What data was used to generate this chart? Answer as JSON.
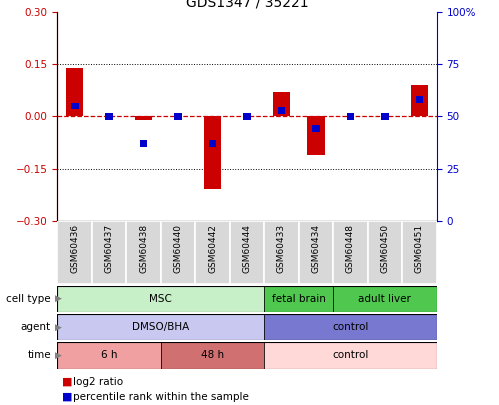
{
  "title": "GDS1347 / 35221",
  "samples": [
    "GSM60436",
    "GSM60437",
    "GSM60438",
    "GSM60440",
    "GSM60442",
    "GSM60444",
    "GSM60433",
    "GSM60434",
    "GSM60448",
    "GSM60450",
    "GSM60451"
  ],
  "log2_ratio": [
    0.14,
    0.0,
    -0.01,
    0.0,
    -0.21,
    0.0,
    0.07,
    -0.11,
    0.0,
    0.0,
    0.09
  ],
  "percentile_rank": [
    55,
    50,
    37,
    50,
    37,
    50,
    53,
    44,
    50,
    50,
    58
  ],
  "ylim_left": [
    -0.3,
    0.3
  ],
  "ylim_right": [
    0,
    100
  ],
  "yticks_left": [
    -0.3,
    -0.15,
    0.0,
    0.15,
    0.3
  ],
  "yticks_right": [
    0,
    25,
    50,
    75,
    100
  ],
  "cell_type_groups": [
    {
      "label": "MSC",
      "start": 0,
      "end": 5,
      "color": "#c8f0c8"
    },
    {
      "label": "fetal brain",
      "start": 6,
      "end": 7,
      "color": "#50c850"
    },
    {
      "label": "adult liver",
      "start": 8,
      "end": 10,
      "color": "#50c850"
    }
  ],
  "agent_groups": [
    {
      "label": "DMSO/BHA",
      "start": 0,
      "end": 5,
      "color": "#c8c8f0"
    },
    {
      "label": "control",
      "start": 6,
      "end": 10,
      "color": "#7878d0"
    }
  ],
  "time_groups": [
    {
      "label": "6 h",
      "start": 0,
      "end": 2,
      "color": "#f0a0a0"
    },
    {
      "label": "48 h",
      "start": 3,
      "end": 5,
      "color": "#d07070"
    },
    {
      "label": "control",
      "start": 6,
      "end": 10,
      "color": "#ffd8d8"
    }
  ],
  "log2_color": "#cc0000",
  "percentile_color": "#0000cc",
  "zero_line_color": "#cc0000",
  "axis_left_color": "#cc0000",
  "axis_right_color": "#0000cc",
  "sample_box_color": "#d8d8d8",
  "row_label_names": [
    "cell type",
    "agent",
    "time"
  ],
  "legend_items": [
    {
      "color": "#cc0000",
      "label": "log2 ratio"
    },
    {
      "color": "#0000cc",
      "label": "percentile rank within the sample"
    }
  ]
}
